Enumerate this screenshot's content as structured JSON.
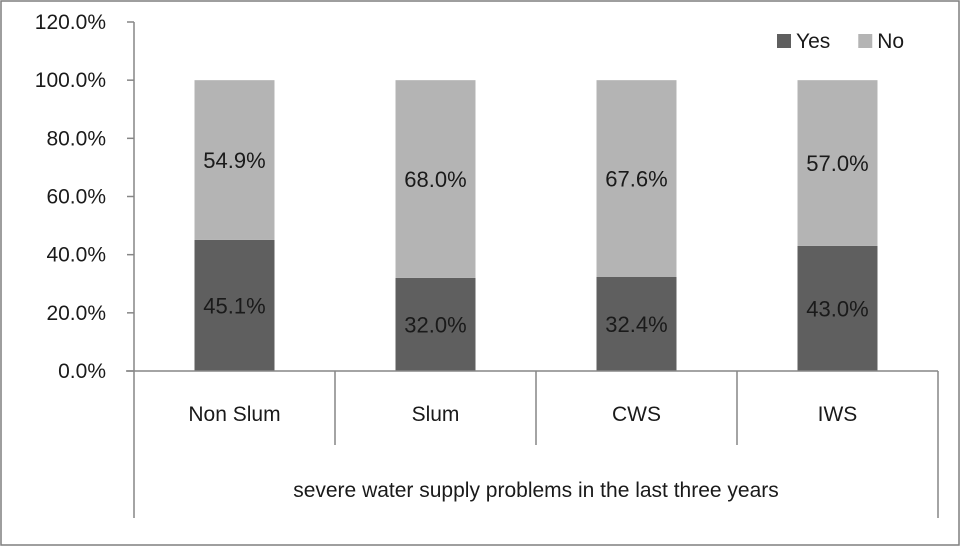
{
  "chart_data": {
    "type": "bar",
    "stacked": true,
    "percent": true,
    "categories": [
      "Non Slum",
      "Slum",
      "CWS",
      "IWS"
    ],
    "series": [
      {
        "name": "Yes",
        "values": [
          45.1,
          32.0,
          32.4,
          43.0
        ],
        "labels": [
          "45.1%",
          "32.0%",
          "32.4%",
          "43.0%"
        ],
        "color": "#5f5f5f"
      },
      {
        "name": "No",
        "values": [
          54.9,
          68.0,
          67.6,
          57.0
        ],
        "labels": [
          "54.9%",
          "68.0%",
          "67.6%",
          "57.0%"
        ],
        "color": "#b4b4b4"
      }
    ],
    "ylim": [
      0,
      120
    ],
    "yticks": [
      0,
      20,
      40,
      60,
      80,
      100,
      120
    ],
    "ytick_labels": [
      "0.0%",
      "20.0%",
      "40.0%",
      "60.0%",
      "80.0%",
      "100.0%",
      "120.0%"
    ],
    "xlabel": "severe water supply problems in the last three years",
    "ylabel": "",
    "title": "",
    "legend_position": "top-right",
    "grid": false
  }
}
